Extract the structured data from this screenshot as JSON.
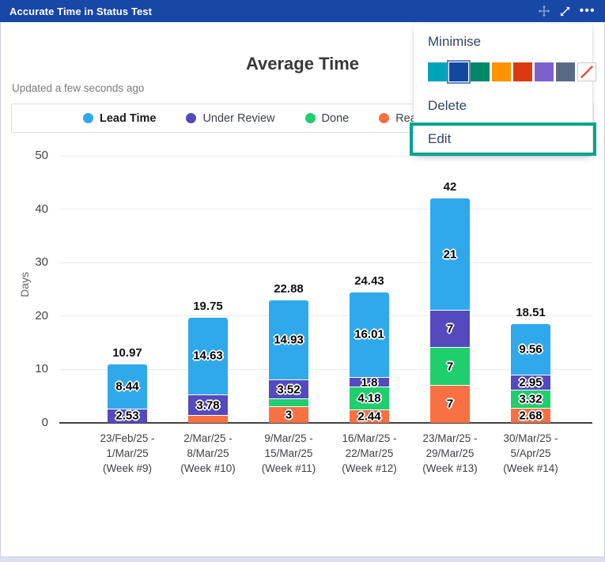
{
  "widget": {
    "title": "Accurate Time in Status Test",
    "header_color": "#1847A6"
  },
  "menu": {
    "items": [
      "Minimise",
      "Delete",
      "Edit"
    ],
    "highlighted_item": "Edit",
    "highlight_color": "#00A38E",
    "selected_swatch_index": 1,
    "swatches": [
      {
        "name": "teal",
        "color": "#00A4BA"
      },
      {
        "name": "dark-blue",
        "color": "#14489F"
      },
      {
        "name": "green",
        "color": "#008765"
      },
      {
        "name": "orange",
        "color": "#FF9300"
      },
      {
        "name": "red",
        "color": "#DB3A0F"
      },
      {
        "name": "purple",
        "color": "#7B61CE"
      },
      {
        "name": "gray",
        "color": "#5A6A85"
      },
      {
        "name": "none",
        "color": "#FFFFFF",
        "slash": true
      }
    ]
  },
  "chart_data": {
    "type": "bar",
    "stacked": true,
    "title": "Average Time",
    "subtitle": "Updated a few seconds ago",
    "ylabel": "Days",
    "xlabel": "",
    "ylim": [
      0,
      50
    ],
    "yticks": [
      0,
      10,
      20,
      30,
      40,
      50
    ],
    "grid": true,
    "legend_position": "top",
    "categories": [
      [
        "23/Feb/25 -",
        "1/Mar/25",
        "(Week #9)"
      ],
      [
        "2/Mar/25 -",
        "8/Mar/25",
        "(Week #10)"
      ],
      [
        "9/Mar/25 -",
        "15/Mar/25",
        "(Week #11)"
      ],
      [
        "16/Mar/25 -",
        "22/Mar/25",
        "(Week #12)"
      ],
      [
        "23/Mar/25 -",
        "29/Mar/25",
        "(Week #13)"
      ],
      [
        "30/Mar/25 -",
        "5/Apr/25",
        "(Week #14)"
      ]
    ],
    "stack_order": [
      "Ready to release",
      "Done",
      "Under Review",
      "Lead Time"
    ],
    "series": [
      {
        "name": "Lead Time",
        "color": "#2FA9EC",
        "bold_legend": true,
        "values": [
          8.44,
          14.63,
          14.93,
          16.01,
          21,
          9.56
        ],
        "labels": [
          "8.44",
          "14.63",
          "14.93",
          "16.01",
          "21",
          "9.56"
        ]
      },
      {
        "name": "Under Review",
        "color": "#5449BE",
        "bold_legend": false,
        "values": [
          2.53,
          3.78,
          3.52,
          1.8,
          7,
          2.95
        ],
        "labels": [
          "2.53",
          "3.78",
          "3.52",
          "1.8",
          "7",
          "2.95"
        ]
      },
      {
        "name": "Done",
        "color": "#1FCE6C",
        "bold_legend": false,
        "values": [
          0,
          0,
          1.43,
          4.18,
          7,
          3.32
        ],
        "labels": [
          null,
          null,
          null,
          "4.18",
          "7",
          "3.32"
        ]
      },
      {
        "name": "Ready to release",
        "color": "#F97042",
        "bold_legend": false,
        "values": [
          0,
          1.34,
          3,
          2.44,
          7,
          2.68
        ],
        "labels": [
          null,
          null,
          "3",
          "2.44",
          "7",
          "2.68"
        ]
      }
    ],
    "totals": [
      "10.97",
      "19.75",
      "22.88",
      "24.43",
      "42",
      "18.51"
    ]
  }
}
